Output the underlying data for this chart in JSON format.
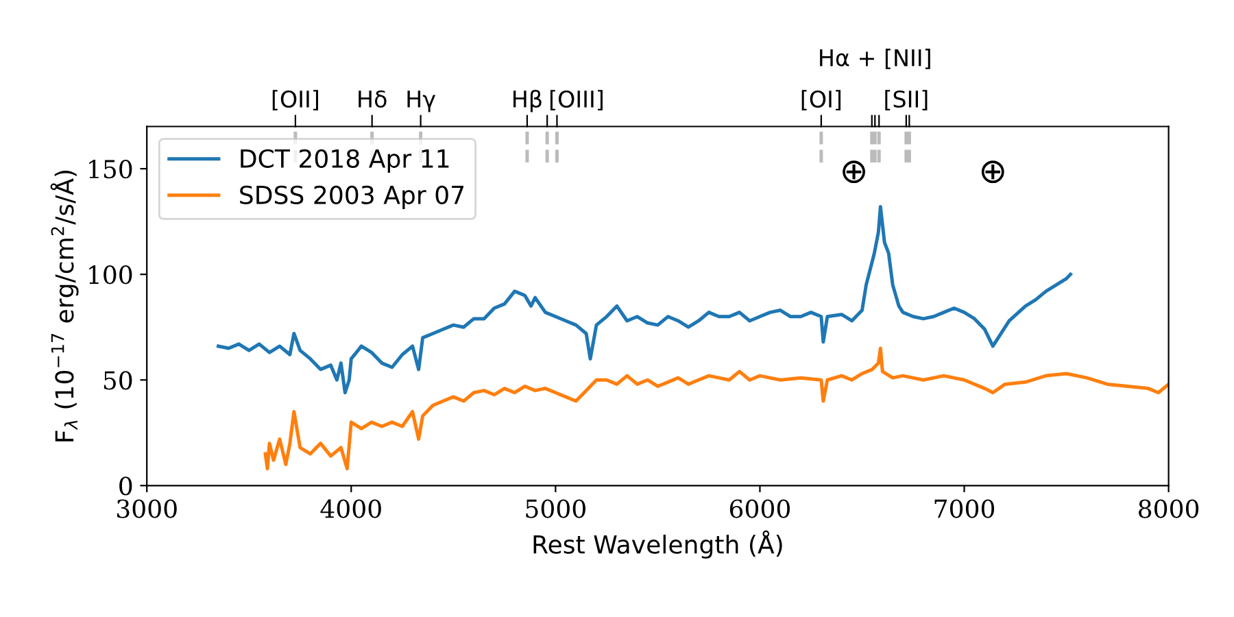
{
  "chart_data": {
    "type": "line",
    "xlabel": "Rest Wavelength (Å)",
    "ylabel": "F$_{λ}$ (10$^{−17}$ erg/cm$^{2}$/s/Å)",
    "xlim": [
      3000,
      8000
    ],
    "xticks": [
      3000,
      4000,
      5000,
      6000,
      7000,
      8000
    ],
    "ylim": [
      0,
      170
    ],
    "yticks": [
      0,
      50,
      100,
      150
    ],
    "grid": false,
    "legend": "top left",
    "line_style": "solid",
    "marker": "none",
    "series": [
      {
        "name": "DCT 2018 Apr 11",
        "color": "#1f77b4",
        "x": [
          3350,
          3400,
          3450,
          3500,
          3550,
          3600,
          3650,
          3700,
          3720,
          3750,
          3800,
          3850,
          3900,
          3930,
          3950,
          3970,
          3990,
          4000,
          4050,
          4100,
          4150,
          4200,
          4250,
          4300,
          4330,
          4350,
          4400,
          4450,
          4500,
          4550,
          4600,
          4650,
          4700,
          4750,
          4800,
          4850,
          4880,
          4900,
          4950,
          5000,
          5050,
          5100,
          5150,
          5170,
          5200,
          5250,
          5300,
          5350,
          5400,
          5450,
          5500,
          5550,
          5600,
          5650,
          5700,
          5750,
          5800,
          5850,
          5900,
          5950,
          6000,
          6050,
          6100,
          6150,
          6200,
          6250,
          6300,
          6310,
          6330,
          6400,
          6450,
          6500,
          6520,
          6560,
          6580,
          6590,
          6610,
          6630,
          6650,
          6680,
          6700,
          6750,
          6800,
          6850,
          6900,
          6950,
          7000,
          7050,
          7100,
          7140,
          7180,
          7220,
          7300,
          7350,
          7400,
          7450,
          7500,
          7520
        ],
        "values": [
          66,
          65,
          67,
          64,
          67,
          63,
          66,
          62,
          72,
          64,
          60,
          55,
          57,
          50,
          58,
          44,
          50,
          60,
          66,
          63,
          58,
          56,
          62,
          66,
          55,
          70,
          72,
          74,
          76,
          75,
          79,
          79,
          84,
          86,
          92,
          90,
          85,
          89,
          82,
          80,
          78,
          76,
          72,
          60,
          76,
          80,
          85,
          78,
          80,
          77,
          76,
          80,
          78,
          75,
          78,
          82,
          80,
          80,
          82,
          78,
          80,
          82,
          83,
          80,
          80,
          82,
          80,
          68,
          80,
          81,
          78,
          83,
          95,
          110,
          120,
          132,
          115,
          110,
          95,
          85,
          82,
          80,
          79,
          80,
          82,
          84,
          82,
          79,
          74,
          66,
          72,
          78,
          85,
          88,
          92,
          95,
          98,
          100
        ]
      },
      {
        "name": "SDSS 2003 Apr 07",
        "color": "#ff7f0e",
        "x": [
          3580,
          3590,
          3600,
          3620,
          3650,
          3680,
          3700,
          3720,
          3750,
          3800,
          3850,
          3900,
          3950,
          3980,
          4000,
          4050,
          4100,
          4150,
          4200,
          4250,
          4300,
          4330,
          4350,
          4400,
          4450,
          4500,
          4550,
          4600,
          4650,
          4700,
          4750,
          4800,
          4850,
          4900,
          4950,
          5000,
          5050,
          5100,
          5150,
          5200,
          5250,
          5300,
          5350,
          5400,
          5450,
          5500,
          5550,
          5600,
          5650,
          5700,
          5750,
          5800,
          5850,
          5900,
          5950,
          6000,
          6100,
          6200,
          6300,
          6310,
          6330,
          6400,
          6450,
          6500,
          6550,
          6580,
          6590,
          6600,
          6650,
          6700,
          6800,
          6900,
          7000,
          7100,
          7140,
          7200,
          7300,
          7400,
          7500,
          7600,
          7700,
          7800,
          7900,
          7950,
          8000
        ],
        "values": [
          15,
          8,
          20,
          12,
          22,
          10,
          20,
          35,
          18,
          15,
          20,
          14,
          18,
          8,
          30,
          27,
          30,
          28,
          30,
          28,
          35,
          22,
          33,
          38,
          40,
          42,
          40,
          44,
          45,
          43,
          46,
          44,
          47,
          45,
          46,
          44,
          42,
          40,
          45,
          50,
          50,
          48,
          52,
          48,
          50,
          47,
          49,
          51,
          48,
          50,
          52,
          51,
          50,
          54,
          50,
          52,
          50,
          51,
          50,
          40,
          50,
          52,
          50,
          53,
          55,
          58,
          65,
          54,
          51,
          52,
          50,
          52,
          50,
          46,
          44,
          48,
          49,
          52,
          53,
          51,
          48,
          47,
          46,
          44,
          48
        ]
      }
    ],
    "ref_lines": [
      {
        "axis": "x",
        "value": 3727,
        "label": "[OII]",
        "color": "#bbbbbb",
        "line_style": "dashed"
      },
      {
        "axis": "x",
        "value": 4102,
        "label": "Hδ",
        "color": "#bbbbbb",
        "line_style": "dashed"
      },
      {
        "axis": "x",
        "value": 4340,
        "label": "Hγ",
        "color": "#bbbbbb",
        "line_style": "dashed"
      },
      {
        "axis": "x",
        "value": 4861,
        "label": "Hβ",
        "color": "#bbbbbb",
        "line_style": "dashed"
      },
      {
        "axis": "x",
        "value": 4959,
        "label": null,
        "color": "#bbbbbb",
        "line_style": "dashed"
      },
      {
        "axis": "x",
        "value": 5007,
        "label": "[OIII]",
        "color": "#bbbbbb",
        "line_style": "dashed"
      },
      {
        "axis": "x",
        "value": 6300,
        "label": "[OI]",
        "color": "#bbbbbb",
        "line_style": "dashed"
      },
      {
        "axis": "x",
        "value": 6548,
        "label": null,
        "color": "#bbbbbb",
        "line_style": "dashed"
      },
      {
        "axis": "x",
        "value": 6583,
        "label": null,
        "color": "#bbbbbb",
        "line_style": "dashed"
      },
      {
        "axis": "x",
        "value": 6716,
        "label": "[SII]",
        "color": "#bbbbbb",
        "line_style": "dashed"
      },
      {
        "axis": "x",
        "value": 6731,
        "label": null,
        "color": "#bbbbbb",
        "line_style": "dashed"
      },
      {
        "axis": "x",
        "value": 6563,
        "label": "Hα + [NII]",
        "color": "#bbbbbb",
        "line_style": "dashed"
      }
    ],
    "annotations": [
      "⊕",
      "⊕"
    ]
  }
}
